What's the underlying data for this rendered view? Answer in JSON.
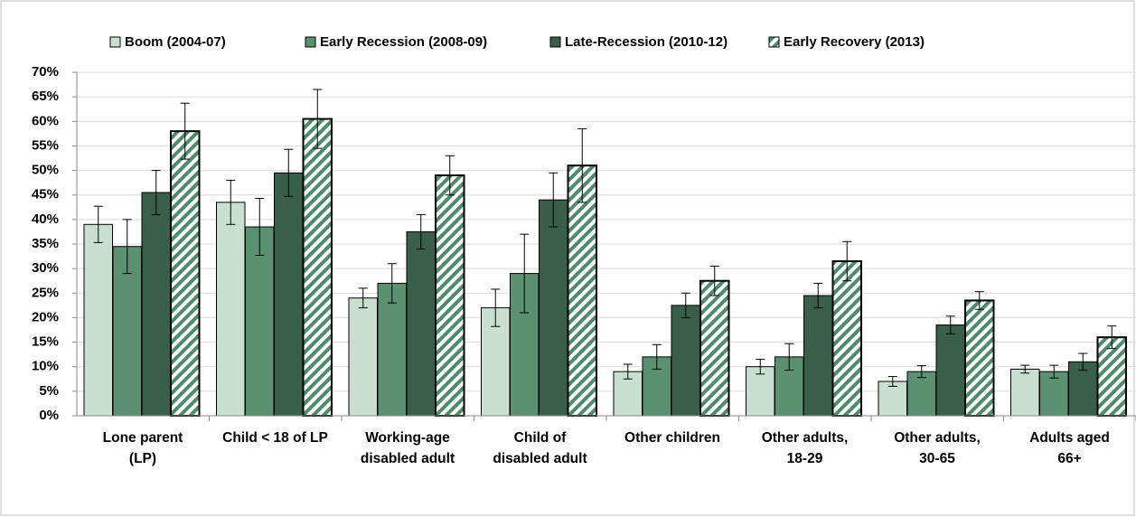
{
  "chart_data": {
    "type": "bar",
    "categories": [
      "Lone parent\n(LP)",
      "Child < 18 of LP",
      "Working-age\ndisabled adult",
      "Child of\ndisabled adult",
      "Other children",
      "Other adults,\n18-29",
      "Other adults,\n30-65",
      "Adults aged\n66+"
    ],
    "series": [
      {
        "name": "Boom (2004-07)",
        "color": "#c9e0d1",
        "values": [
          39,
          43.5,
          24,
          22,
          9,
          10,
          7,
          9.5
        ],
        "errors": [
          3.7,
          4.5,
          2,
          3.8,
          1.5,
          1.5,
          1,
          0.8
        ]
      },
      {
        "name": "Early Recession (2008-09)",
        "color": "#5b9070",
        "values": [
          34.5,
          38.5,
          27,
          29,
          12,
          12,
          9,
          9
        ],
        "errors": [
          5.5,
          5.8,
          4,
          8,
          2.5,
          2.7,
          1.2,
          1.3
        ]
      },
      {
        "name": "Late-Recession (2010-12)",
        "color": "#3a5f49",
        "values": [
          45.5,
          49.5,
          37.5,
          44,
          22.5,
          24.5,
          18.5,
          11
        ],
        "errors": [
          4.5,
          4.8,
          3.5,
          5.5,
          2.5,
          2.5,
          1.8,
          1.7
        ]
      },
      {
        "name": "Early Recovery (2013)",
        "color": "#4f8a6a",
        "hatch": true,
        "values": [
          58,
          60.5,
          49,
          51,
          27.5,
          31.5,
          23.5,
          16
        ],
        "errors": [
          5.7,
          6,
          4,
          7.5,
          3,
          4,
          1.8,
          2.3
        ]
      }
    ],
    "ylim": [
      0,
      70
    ],
    "yticks": [
      {
        "value": 0,
        "label": "0%"
      },
      {
        "value": 5,
        "label": "5%"
      },
      {
        "value": 10,
        "label": "10%"
      },
      {
        "value": 15,
        "label": "15%"
      },
      {
        "value": 20,
        "label": "20%"
      },
      {
        "value": 25,
        "label": "25%"
      },
      {
        "value": 30,
        "label": "30%"
      },
      {
        "value": 35,
        "label": "35%"
      },
      {
        "value": 40,
        "label": "40%"
      },
      {
        "value": 45,
        "label": "45%"
      },
      {
        "value": 50,
        "label": "50%"
      },
      {
        "value": 55,
        "label": "55%"
      },
      {
        "value": 60,
        "label": "60%"
      },
      {
        "value": 65,
        "label": "65%"
      },
      {
        "value": 70,
        "label": "70%"
      }
    ],
    "grid": true,
    "legend": "top"
  }
}
